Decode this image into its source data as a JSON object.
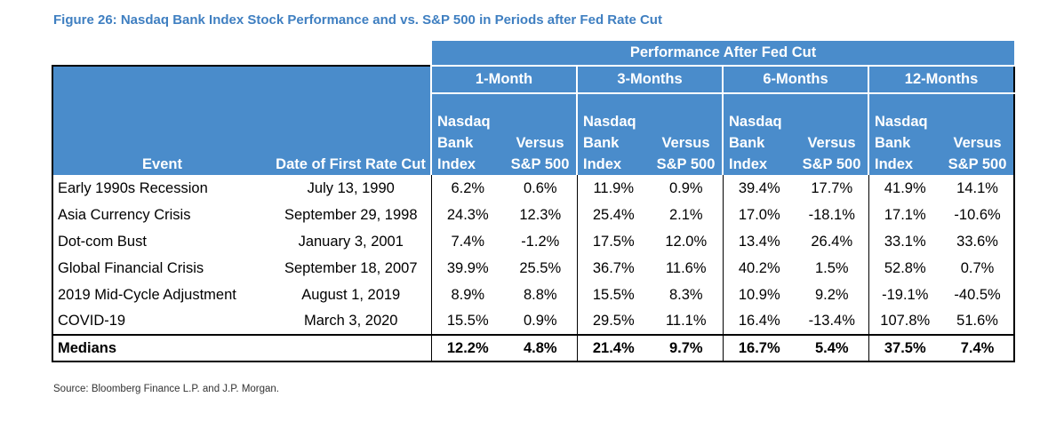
{
  "figure_title": "Figure 26: Nasdaq Bank Index Stock Performance and vs. S&P 500 in Periods after Fed Rate Cut",
  "source": "Source: Bloomberg Finance L.P. and J.P. Morgan.",
  "chart_data": {
    "type": "table",
    "title": "Figure 26: Nasdaq Bank Index Stock Performance and vs. S&P 500 in Periods after Fed Rate Cut",
    "group_header": "Performance After Fed Cut",
    "periods": [
      "1-Month",
      "3-Months",
      "6-Months",
      "12-Months"
    ],
    "columns": {
      "event": "Event",
      "date": "Date of First Rate Cut",
      "index_line1": "Nasdaq",
      "index_line2": "Bank",
      "index_line3": "Index",
      "versus_line1": "Versus",
      "versus_line2": "S&P 500"
    },
    "rows": [
      {
        "event": "Early 1990s Recession",
        "date": "July 13, 1990",
        "values": [
          "6.2%",
          "0.6%",
          "11.9%",
          "0.9%",
          "39.4%",
          "17.7%",
          "41.9%",
          "14.1%"
        ]
      },
      {
        "event": "Asia Currency Crisis",
        "date": "September 29, 1998",
        "values": [
          "24.3%",
          "12.3%",
          "25.4%",
          "2.1%",
          "17.0%",
          "-18.1%",
          "17.1%",
          "-10.6%"
        ]
      },
      {
        "event": "Dot-com Bust",
        "date": "January 3, 2001",
        "values": [
          "7.4%",
          "-1.2%",
          "17.5%",
          "12.0%",
          "13.4%",
          "26.4%",
          "33.1%",
          "33.6%"
        ]
      },
      {
        "event": "Global Financial Crisis",
        "date": "September 18, 2007",
        "values": [
          "39.9%",
          "25.5%",
          "36.7%",
          "11.6%",
          "40.2%",
          "1.5%",
          "52.8%",
          "0.7%"
        ]
      },
      {
        "event": "2019 Mid-Cycle Adjustment",
        "date": "August 1, 2019",
        "values": [
          "8.9%",
          "8.8%",
          "15.5%",
          "8.3%",
          "10.9%",
          "9.2%",
          "-19.1%",
          "-40.5%"
        ]
      },
      {
        "event": "COVID-19",
        "date": "March 3, 2020",
        "values": [
          "15.5%",
          "0.9%",
          "29.5%",
          "11.1%",
          "16.4%",
          "-13.4%",
          "107.8%",
          "51.6%"
        ]
      }
    ],
    "medians": {
      "label": "Medians",
      "values": [
        "12.2%",
        "4.8%",
        "21.4%",
        "9.7%",
        "16.7%",
        "5.4%",
        "37.5%",
        "7.4%"
      ]
    }
  },
  "colors": {
    "header_blue": "#4a8ccb",
    "title_blue": "#3f7fc1"
  }
}
